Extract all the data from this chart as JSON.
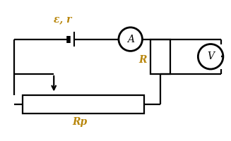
{
  "bg_color": "#ffffff",
  "line_color": "#000000",
  "label_color": "#b8860b",
  "emf_label": "ε, r",
  "ammeter_label": "A",
  "voltmeter_label": "V",
  "R_label": "R",
  "Rp_label": "Rp",
  "fig_width": 3.27,
  "fig_height": 2.0,
  "dpi": 100
}
